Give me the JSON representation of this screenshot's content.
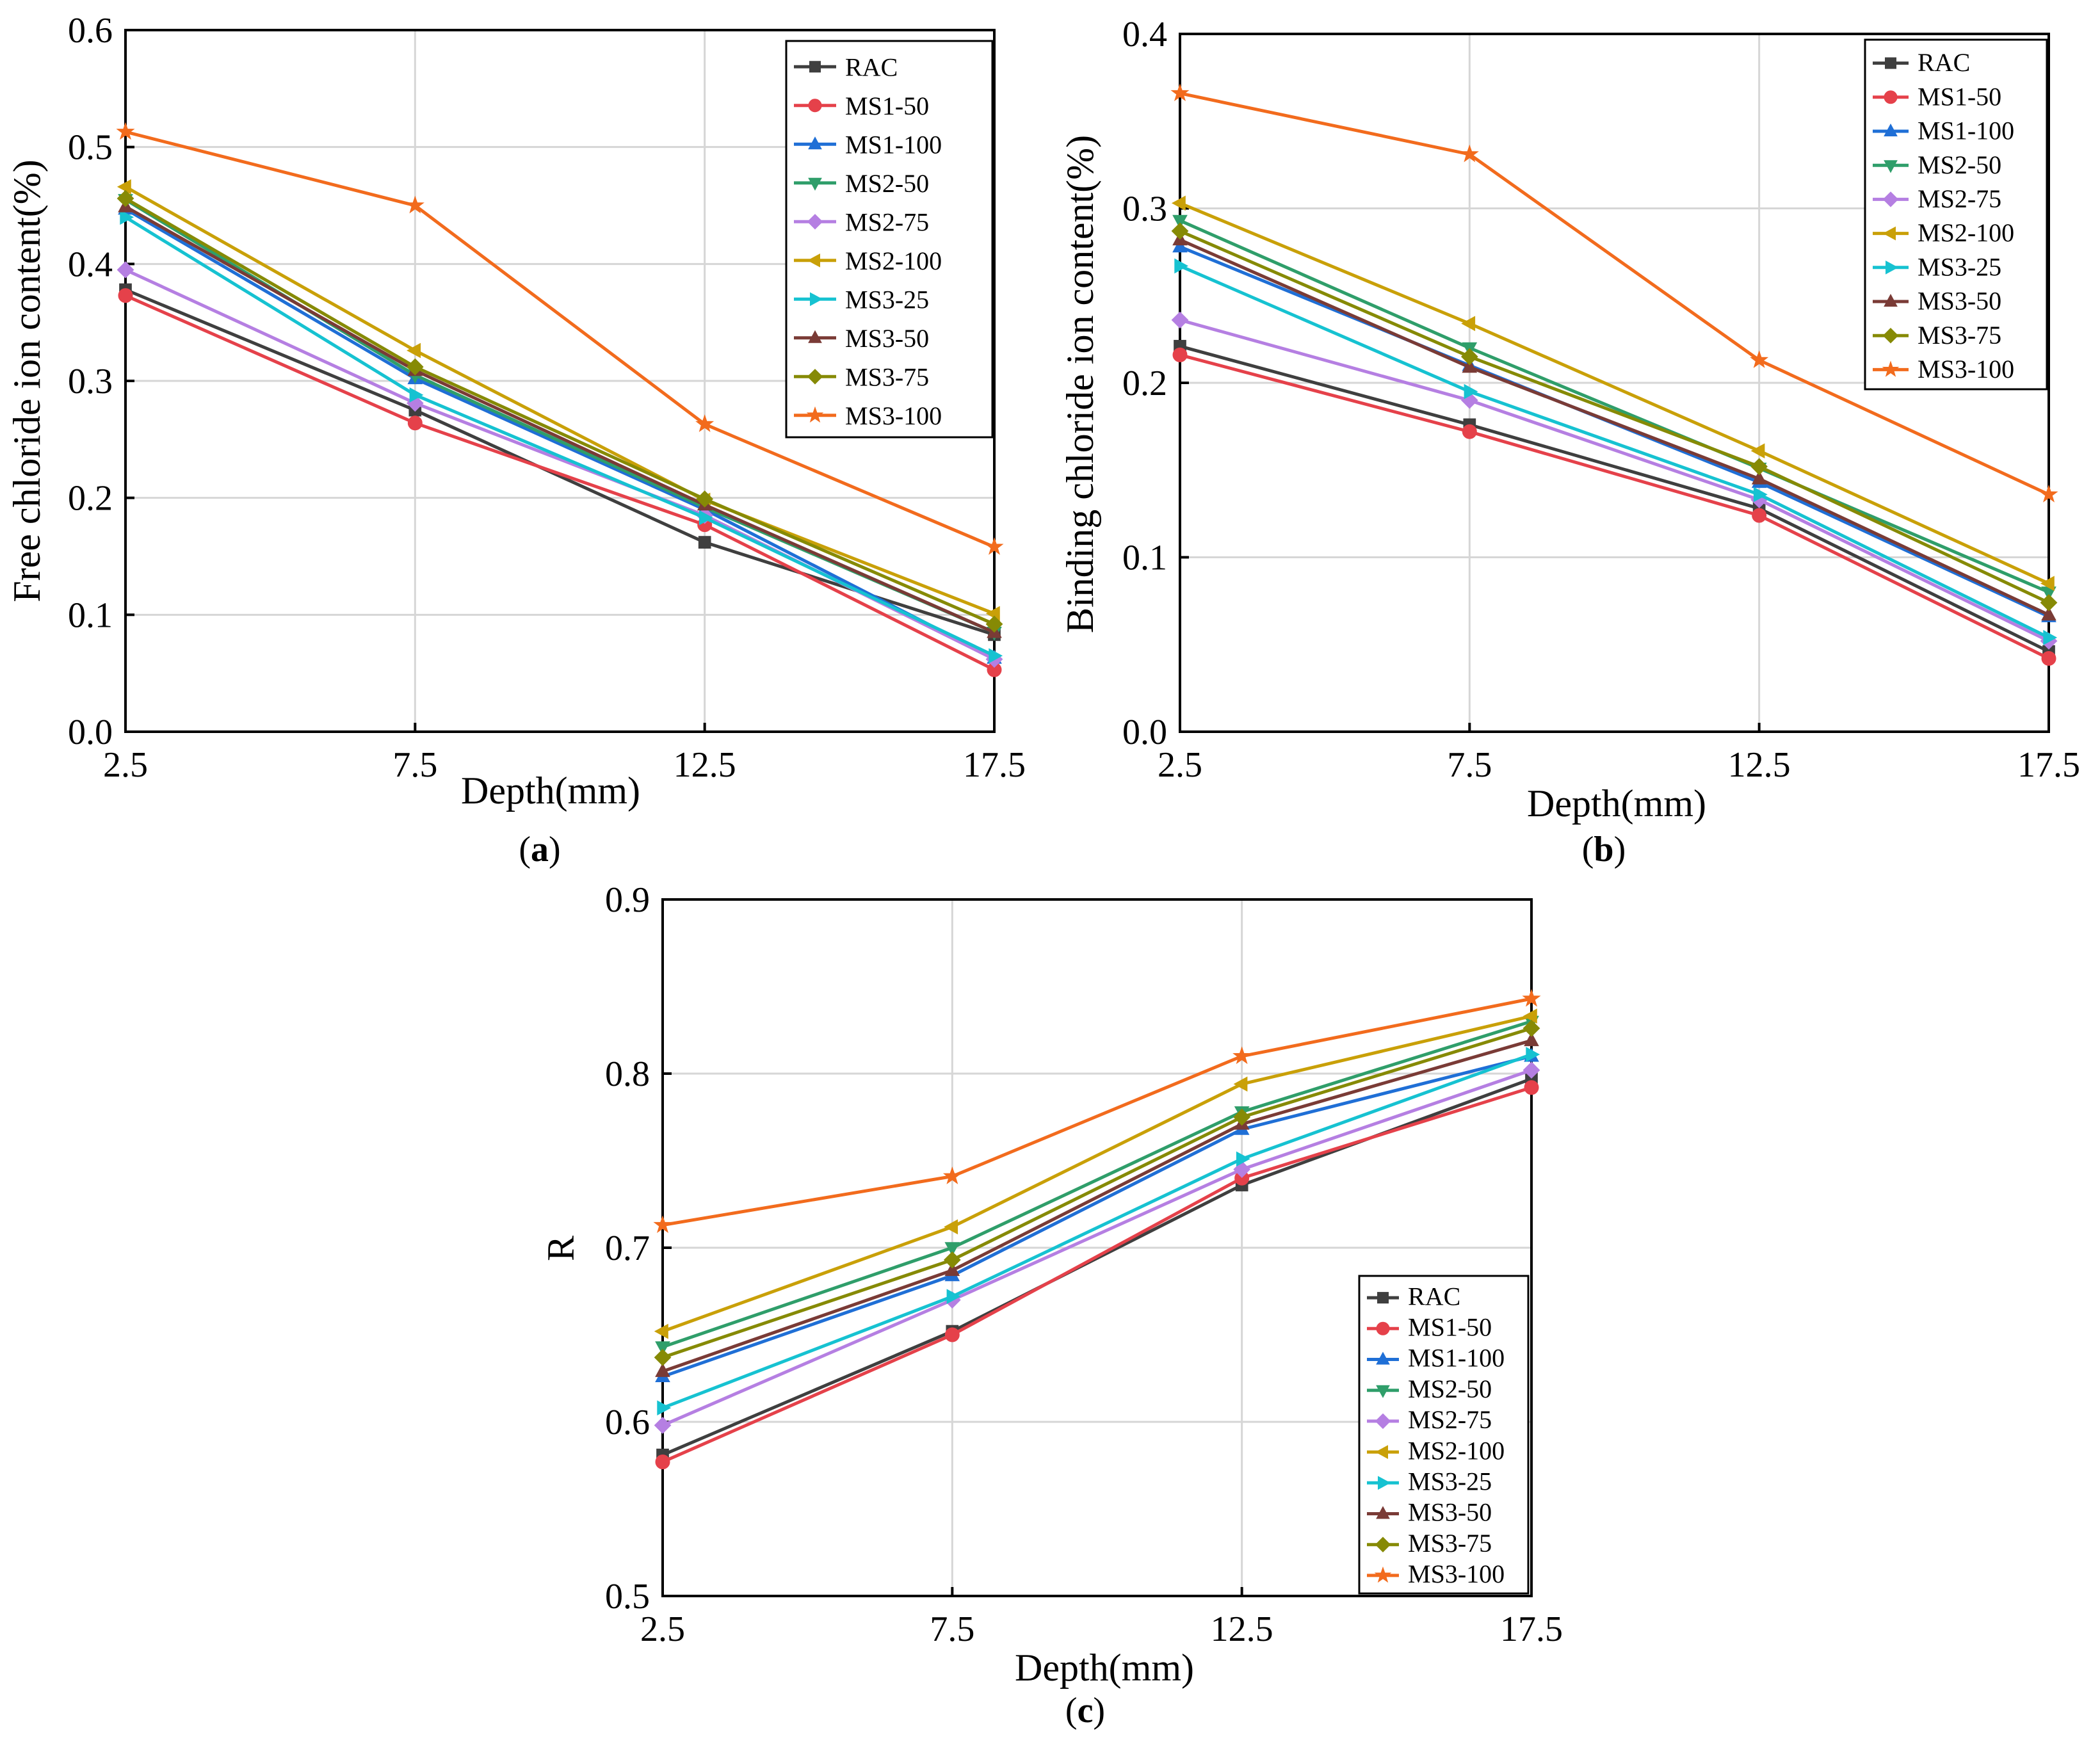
{
  "figure": {
    "panel_labels": [
      "a",
      "b",
      "c"
    ]
  },
  "chart_data": [
    {
      "panel": "a",
      "type": "line",
      "title": "",
      "xlabel": "Depth(mm)",
      "ylabel": "Free chloride ion content(%)",
      "x": [
        2.5,
        7.5,
        12.5,
        17.5
      ],
      "x_tick_labels": [
        "2.5",
        "7.5",
        "12.5",
        "17.5"
      ],
      "ylim": [
        0,
        0.6
      ],
      "y_ticks": [
        0,
        0.1,
        0.2,
        0.3,
        0.4,
        0.5,
        0.6
      ],
      "y_tick_labels": [
        "0.0",
        "0.1",
        "0.2",
        "0.3",
        "0.4",
        "0.5",
        "0.6"
      ],
      "grid": true,
      "legend": "top-right",
      "series": [
        {
          "name": "RAC",
          "color": "#3f3f3f",
          "marker": "square",
          "values": [
            0.378,
            0.275,
            0.162,
            0.083
          ]
        },
        {
          "name": "MS1-50",
          "color": "#e5414a",
          "marker": "circle",
          "values": [
            0.373,
            0.264,
            0.177,
            0.053
          ]
        },
        {
          "name": "MS1-100",
          "color": "#1f6fd6",
          "marker": "triangle-up",
          "values": [
            0.447,
            0.302,
            0.19,
            0.063
          ]
        },
        {
          "name": "MS2-50",
          "color": "#2f9e6a",
          "marker": "triangle-down",
          "values": [
            0.455,
            0.305,
            0.192,
            0.085
          ]
        },
        {
          "name": "MS2-75",
          "color": "#b57fe2",
          "marker": "diamond",
          "values": [
            0.395,
            0.281,
            0.185,
            0.062
          ]
        },
        {
          "name": "MS2-100",
          "color": "#c9a008",
          "marker": "triangle-left",
          "values": [
            0.466,
            0.326,
            0.198,
            0.101
          ]
        },
        {
          "name": "MS3-25",
          "color": "#16c2d1",
          "marker": "triangle-right",
          "values": [
            0.44,
            0.288,
            0.183,
            0.065
          ]
        },
        {
          "name": "MS3-50",
          "color": "#7a3b36",
          "marker": "triangle-up",
          "values": [
            0.449,
            0.309,
            0.194,
            0.085
          ]
        },
        {
          "name": "MS3-75",
          "color": "#868a05",
          "marker": "diamond",
          "values": [
            0.456,
            0.312,
            0.199,
            0.092
          ]
        },
        {
          "name": "MS3-100",
          "color": "#f26b1d",
          "marker": "star",
          "values": [
            0.513,
            0.45,
            0.263,
            0.158
          ]
        }
      ]
    },
    {
      "panel": "b",
      "type": "line",
      "title": "",
      "xlabel": "Depth(mm)",
      "ylabel": "Binding chloride ion content(%)",
      "x": [
        2.5,
        7.5,
        12.5,
        17.5
      ],
      "x_tick_labels": [
        "2.5",
        "7.5",
        "12.5",
        "17.5"
      ],
      "ylim": [
        0,
        0.4
      ],
      "y_ticks": [
        0,
        0.1,
        0.2,
        0.3,
        0.4
      ],
      "y_tick_labels": [
        "0.0",
        "0.1",
        "0.2",
        "0.3",
        "0.4"
      ],
      "grid": true,
      "legend": "top-right",
      "series": [
        {
          "name": "RAC",
          "color": "#3f3f3f",
          "marker": "square",
          "values": [
            0.221,
            0.176,
            0.128,
            0.046
          ]
        },
        {
          "name": "MS1-50",
          "color": "#e5414a",
          "marker": "circle",
          "values": [
            0.216,
            0.172,
            0.124,
            0.042
          ]
        },
        {
          "name": "MS1-100",
          "color": "#1f6fd6",
          "marker": "triangle-up",
          "values": [
            0.278,
            0.21,
            0.143,
            0.066
          ]
        },
        {
          "name": "MS2-50",
          "color": "#2f9e6a",
          "marker": "triangle-down",
          "values": [
            0.293,
            0.22,
            0.151,
            0.08
          ]
        },
        {
          "name": "MS2-75",
          "color": "#b57fe2",
          "marker": "diamond",
          "values": [
            0.236,
            0.19,
            0.133,
            0.052
          ]
        },
        {
          "name": "MS2-100",
          "color": "#c9a008",
          "marker": "triangle-left",
          "values": [
            0.303,
            0.234,
            0.161,
            0.085
          ]
        },
        {
          "name": "MS3-25",
          "color": "#16c2d1",
          "marker": "triangle-right",
          "values": [
            0.267,
            0.195,
            0.136,
            0.054
          ]
        },
        {
          "name": "MS3-50",
          "color": "#7a3b36",
          "marker": "triangle-up",
          "values": [
            0.282,
            0.209,
            0.145,
            0.067
          ]
        },
        {
          "name": "MS3-75",
          "color": "#868a05",
          "marker": "diamond",
          "values": [
            0.287,
            0.215,
            0.152,
            0.074
          ]
        },
        {
          "name": "MS3-100",
          "color": "#f26b1d",
          "marker": "star",
          "values": [
            0.366,
            0.331,
            0.213,
            0.136
          ]
        }
      ]
    },
    {
      "panel": "c",
      "type": "line",
      "title": "",
      "xlabel": "Depth(mm)",
      "ylabel": "R",
      "x": [
        2.5,
        7.5,
        12.5,
        17.5
      ],
      "x_tick_labels": [
        "2.5",
        "7.5",
        "12.5",
        "17.5"
      ],
      "ylim": [
        0.5,
        0.9
      ],
      "y_ticks": [
        0.5,
        0.6,
        0.7,
        0.8,
        0.9
      ],
      "y_tick_labels": [
        "0.5",
        "0.6",
        "0.7",
        "0.8",
        "0.9"
      ],
      "grid": true,
      "legend": "bottom-right",
      "series": [
        {
          "name": "RAC",
          "color": "#3f3f3f",
          "marker": "square",
          "values": [
            0.581,
            0.652,
            0.736,
            0.797
          ]
        },
        {
          "name": "MS1-50",
          "color": "#e5414a",
          "marker": "circle",
          "values": [
            0.577,
            0.65,
            0.74,
            0.792
          ]
        },
        {
          "name": "MS1-100",
          "color": "#1f6fd6",
          "marker": "triangle-up",
          "values": [
            0.626,
            0.684,
            0.768,
            0.81
          ]
        },
        {
          "name": "MS2-50",
          "color": "#2f9e6a",
          "marker": "triangle-down",
          "values": [
            0.643,
            0.7,
            0.778,
            0.83
          ]
        },
        {
          "name": "MS2-75",
          "color": "#b57fe2",
          "marker": "diamond",
          "values": [
            0.598,
            0.67,
            0.745,
            0.802
          ]
        },
        {
          "name": "MS2-100",
          "color": "#c9a008",
          "marker": "triangle-left",
          "values": [
            0.652,
            0.712,
            0.794,
            0.833
          ]
        },
        {
          "name": "MS3-25",
          "color": "#16c2d1",
          "marker": "triangle-right",
          "values": [
            0.608,
            0.672,
            0.751,
            0.811
          ]
        },
        {
          "name": "MS3-50",
          "color": "#7a3b36",
          "marker": "triangle-up",
          "values": [
            0.629,
            0.687,
            0.771,
            0.819
          ]
        },
        {
          "name": "MS3-75",
          "color": "#868a05",
          "marker": "diamond",
          "values": [
            0.637,
            0.693,
            0.775,
            0.826
          ]
        },
        {
          "name": "MS3-100",
          "color": "#f26b1d",
          "marker": "star",
          "values": [
            0.713,
            0.741,
            0.81,
            0.843
          ]
        }
      ]
    }
  ]
}
